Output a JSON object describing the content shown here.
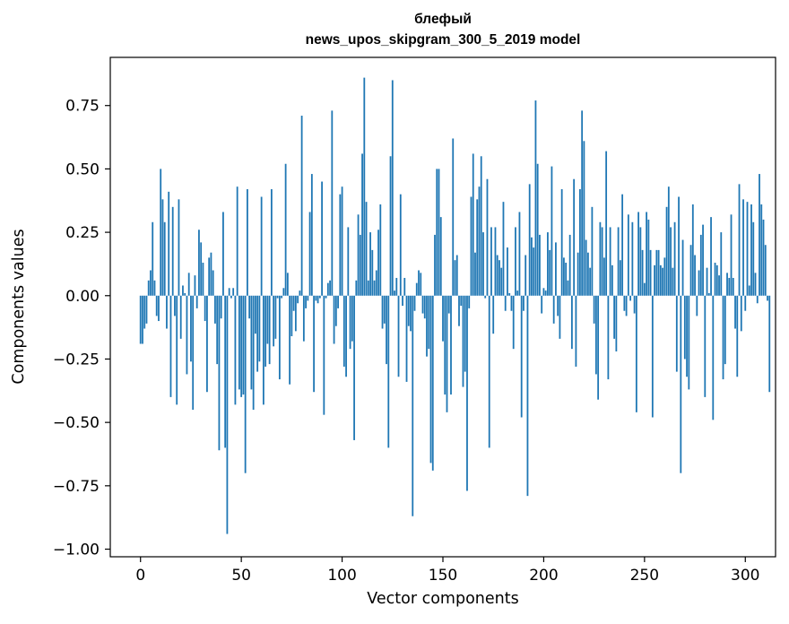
{
  "chart_data": {
    "type": "bar",
    "title": "блефый",
    "subtitle": "news_upos_skipgram_300_5_2019 model",
    "xlabel": "Vector components",
    "ylabel": "Components values",
    "xlim": [
      -15,
      315
    ],
    "ylim": [
      -1.03,
      0.94
    ],
    "xticks": [
      0,
      50,
      100,
      150,
      200,
      250,
      300
    ],
    "xtick_labels": [
      "0",
      "50",
      "100",
      "150",
      "200",
      "250",
      "300"
    ],
    "yticks": [
      -1.0,
      -0.75,
      -0.5,
      -0.25,
      0.0,
      0.25,
      0.5,
      0.75
    ],
    "ytick_labels": [
      "−1.00",
      "−0.75",
      "−0.50",
      "−0.25",
      "0.00",
      "0.25",
      "0.50",
      "0.75"
    ],
    "bar_color": "#1f77b4",
    "grid": false,
    "values": [
      -0.19,
      -0.19,
      -0.13,
      -0.11,
      0.06,
      0.1,
      0.29,
      0.06,
      -0.08,
      -0.1,
      0.5,
      0.38,
      0.29,
      -0.13,
      0.41,
      -0.4,
      0.35,
      -0.08,
      -0.43,
      0.38,
      -0.17,
      0.04,
      0.01,
      -0.31,
      0.09,
      -0.26,
      -0.45,
      0.08,
      -0.05,
      0.26,
      0.21,
      0.13,
      -0.1,
      -0.38,
      0.15,
      0.17,
      0.1,
      -0.11,
      -0.27,
      -0.61,
      -0.09,
      0.33,
      -0.6,
      -0.94,
      0.03,
      -0.01,
      0.03,
      -0.43,
      0.43,
      -0.37,
      -0.4,
      -0.39,
      -0.7,
      0.42,
      -0.09,
      -0.37,
      -0.45,
      -0.15,
      -0.3,
      -0.26,
      0.39,
      -0.43,
      -0.28,
      -0.19,
      -0.27,
      0.42,
      -0.2,
      -0.17,
      -0.01,
      -0.33,
      -0.01,
      0.03,
      0.52,
      0.09,
      -0.35,
      -0.16,
      -0.06,
      -0.14,
      -0.03,
      0.02,
      0.71,
      -0.18,
      -0.05,
      -0.02,
      0.33,
      0.48,
      -0.38,
      -0.02,
      -0.03,
      -0.01,
      0.45,
      -0.47,
      -0.01,
      0.05,
      0.06,
      0.73,
      -0.19,
      -0.12,
      -0.05,
      0.4,
      0.43,
      -0.28,
      -0.32,
      0.27,
      -0.21,
      -0.18,
      -0.57,
      0.06,
      0.32,
      0.24,
      0.56,
      0.86,
      0.37,
      0.06,
      0.25,
      0.18,
      0.06,
      0.1,
      0.26,
      0.36,
      -0.13,
      -0.11,
      -0.27,
      -0.6,
      0.55,
      0.85,
      0.02,
      0.07,
      -0.32,
      0.4,
      -0.04,
      0.07,
      -0.34,
      -0.12,
      -0.14,
      -0.87,
      -0.06,
      0.05,
      0.1,
      0.09,
      -0.07,
      -0.09,
      -0.24,
      -0.21,
      -0.66,
      -0.69,
      0.24,
      0.5,
      0.5,
      0.31,
      -0.18,
      -0.39,
      -0.46,
      -0.07,
      -0.39,
      0.62,
      0.14,
      0.16,
      -0.12,
      -0.04,
      -0.36,
      -0.3,
      -0.77,
      -0.05,
      0.39,
      0.56,
      0.17,
      0.38,
      0.43,
      0.55,
      0.25,
      -0.01,
      0.46,
      -0.6,
      0.27,
      -0.15,
      0.27,
      0.16,
      0.14,
      0.11,
      0.37,
      -0.06,
      0.19,
      0.01,
      -0.06,
      -0.21,
      0.27,
      0.02,
      0.33,
      -0.48,
      -0.06,
      0.16,
      -0.79,
      0.44,
      0.23,
      0.19,
      0.77,
      0.52,
      0.24,
      -0.07,
      0.03,
      0.02,
      0.25,
      0.18,
      0.51,
      -0.11,
      0.21,
      -0.08,
      -0.17,
      0.42,
      0.15,
      0.13,
      0.06,
      0.24,
      -0.21,
      0.46,
      -0.28,
      0.17,
      0.42,
      0.73,
      0.61,
      0.22,
      0.17,
      0.11,
      0.35,
      -0.11,
      -0.31,
      -0.41,
      0.29,
      0.27,
      0.15,
      0.57,
      -0.33,
      0.27,
      0.12,
      -0.17,
      -0.22,
      0.27,
      0.14,
      0.4,
      -0.06,
      -0.08,
      0.32,
      -0.02,
      0.29,
      -0.07,
      -0.46,
      0.33,
      0.27,
      0.18,
      0.05,
      0.33,
      0.3,
      0.18,
      -0.48,
      0.12,
      0.18,
      0.18,
      0.12,
      0.11,
      0.15,
      0.35,
      0.43,
      0.27,
      0.11,
      0.29,
      -0.3,
      0.39,
      -0.7,
      0.22,
      -0.25,
      -0.32,
      -0.37,
      0.2,
      0.36,
      0.16,
      -0.08,
      0.1,
      0.24,
      0.28,
      -0.4,
      0.11,
      0.01,
      0.31,
      -0.49,
      0.13,
      0.12,
      0.08,
      0.25,
      -0.33,
      -0.27,
      0.09,
      0.07,
      0.32,
      0.07,
      -0.13,
      -0.32,
      0.44,
      -0.14,
      0.38,
      -0.06,
      0.37,
      0.04,
      0.36,
      0.29,
      0.09,
      -0.03,
      0.48,
      0.36,
      0.3,
      0.2,
      -0.02,
      -0.38
    ]
  }
}
